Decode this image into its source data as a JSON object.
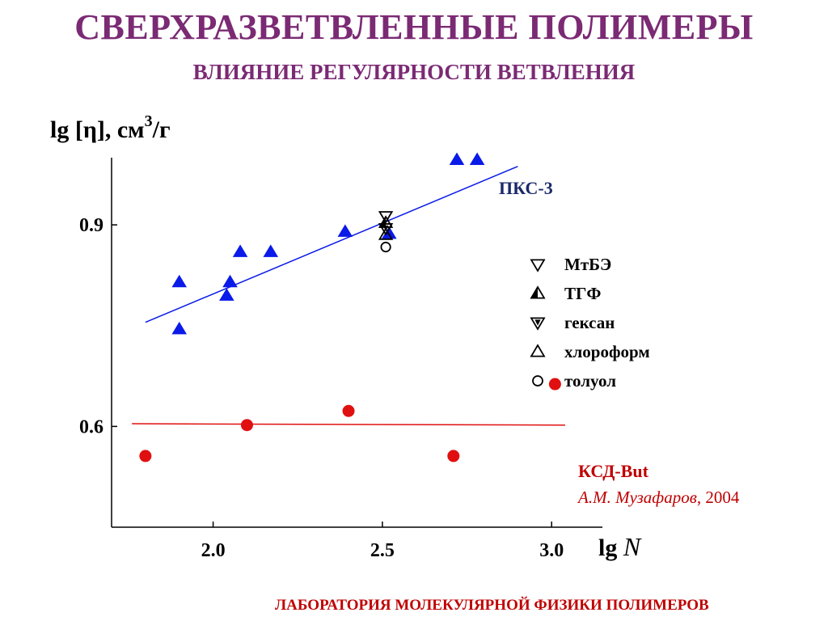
{
  "page": {
    "title": "СВЕРХРАЗВЕТВЛЕННЫЕ ПОЛИМЕРЫ",
    "subtitle": "ВЛИЯНИЕ РЕГУЛЯРНОСТИ ВЕТВЛЕНИЯ",
    "footer": "ЛАБОРАТОРИЯ МОЛЕКУЛЯРНОЙ ФИЗИКИ ПОЛИМЕРОВ"
  },
  "chart_data": {
    "type": "scatter",
    "ylabel_main": "lg [η], см",
    "ylabel_sup": "3",
    "ylabel_tail": "/г",
    "xlabel_main": "lg ",
    "xlabel_var": "N",
    "xlim": [
      1.7,
      3.15
    ],
    "ylim": [
      0.45,
      1.0
    ],
    "xticks": [
      2.0,
      2.5,
      3.0
    ],
    "xtick_labels": [
      "2.0",
      "2.5",
      "3.0"
    ],
    "yticks": [
      0.6,
      0.9
    ],
    "ytick_labels": [
      "0.6",
      "0.9"
    ],
    "grid": false,
    "series": [
      {
        "name": "ПКС-3",
        "color": "#0a1ae8",
        "marker": "triangle-filled",
        "x": [
          1.9,
          1.9,
          2.04,
          2.05,
          2.08,
          2.17,
          2.39,
          2.52,
          2.72,
          2.78
        ],
        "y": [
          0.815,
          0.745,
          0.795,
          0.815,
          0.86,
          0.86,
          0.89,
          0.887,
          0.997,
          0.997
        ],
        "fit": {
          "x": [
            1.8,
            2.9
          ],
          "y": [
            0.755,
            0.987
          ],
          "color": "#0a1ae8"
        }
      },
      {
        "name": "КСД-But",
        "color": "#e01010",
        "marker": "circle-filled",
        "x": [
          1.8,
          2.1,
          2.4,
          2.71,
          3.01
        ],
        "y": [
          0.556,
          0.602,
          0.623,
          0.556,
          0.663
        ],
        "fit": {
          "x": [
            1.76,
            3.04
          ],
          "y": [
            0.604,
            0.602
          ],
          "color": "#e01010"
        }
      }
    ],
    "solvent_points": [
      {
        "marker": "triangle-down-open",
        "x": 2.51,
        "y": 0.913
      },
      {
        "marker": "triangle-half",
        "x": 2.51,
        "y": 0.903
      },
      {
        "marker": "triangle-down-filled",
        "x": 2.51,
        "y": 0.895
      },
      {
        "marker": "triangle-open",
        "x": 2.51,
        "y": 0.885
      },
      {
        "marker": "circle-open",
        "x": 2.51,
        "y": 0.867
      }
    ],
    "series_labels": {
      "pks": "ПКС-3",
      "ksd": "КСД-But",
      "author": "А.М. Музафаров",
      "year": ", 2004"
    },
    "legend": {
      "placement": "right",
      "entries": [
        {
          "marker": "triangle-down-open",
          "label": "МтБЭ"
        },
        {
          "marker": "triangle-half",
          "label": "ТГФ"
        },
        {
          "marker": "triangle-down-filled",
          "label": "гексан"
        },
        {
          "marker": "triangle-open",
          "label": "хлороформ"
        },
        {
          "marker": "circle-open",
          "label": "толуол"
        }
      ]
    }
  }
}
